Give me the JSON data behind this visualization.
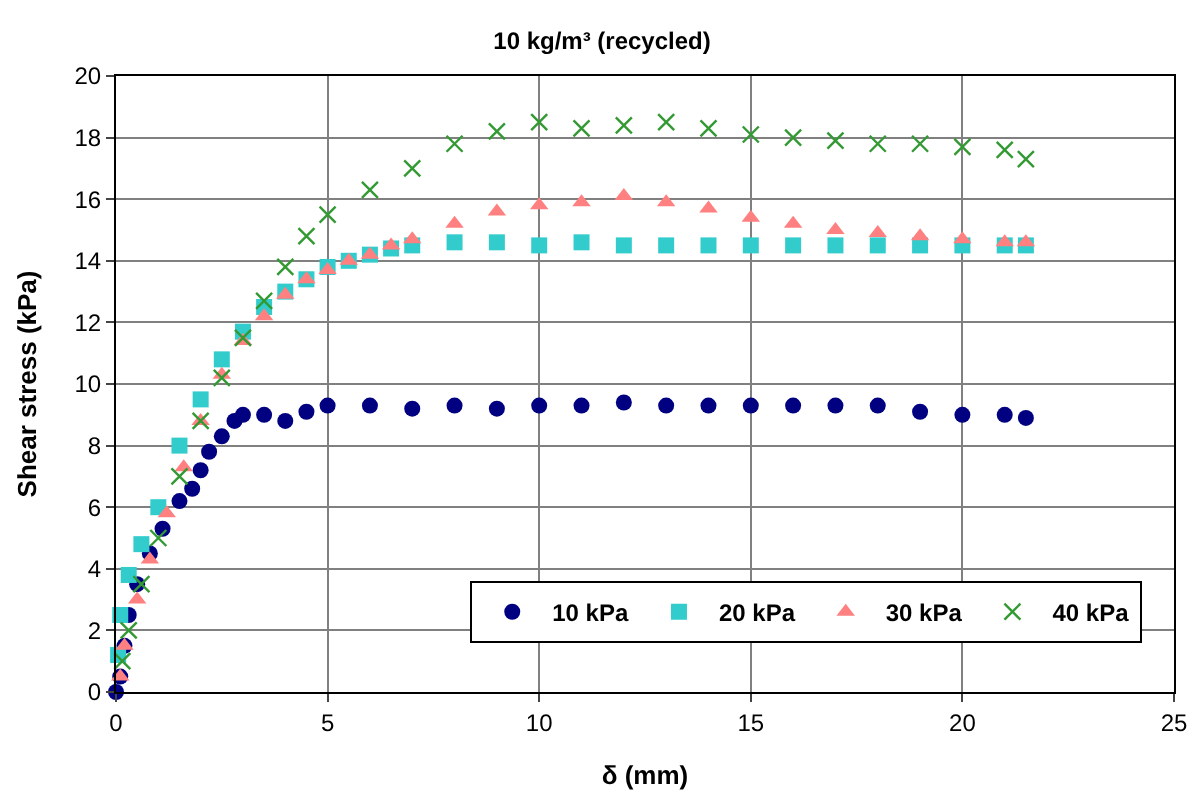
{
  "chart_data": {
    "type": "scatter",
    "title": "10 kg/m³ (recycled)",
    "xlabel": "δ (mm)",
    "ylabel": "Shear stress (kPa)",
    "xlim": [
      0,
      25
    ],
    "xticks": [
      0,
      5,
      10,
      15,
      20,
      25
    ],
    "ylim": [
      0,
      20
    ],
    "yticks": [
      0,
      2,
      4,
      6,
      8,
      10,
      12,
      14,
      16,
      18,
      20
    ],
    "grid": true,
    "legend": "bottom right",
    "series": [
      {
        "name": "10 kPa",
        "color": "#000080",
        "marker": "circle",
        "x": [
          0,
          0.1,
          0.2,
          0.3,
          0.5,
          0.8,
          1.1,
          1.5,
          1.8,
          2.0,
          2.2,
          2.5,
          2.8,
          3.0,
          3.5,
          4.0,
          4.5,
          5.0,
          6,
          7,
          8,
          9,
          10,
          11,
          12,
          13,
          14,
          15,
          16,
          17,
          18,
          19,
          20,
          21,
          21.5
        ],
        "values": [
          0,
          0.5,
          1.5,
          2.5,
          3.5,
          4.5,
          5.3,
          6.2,
          6.6,
          7.2,
          7.8,
          8.3,
          8.8,
          9.0,
          9.0,
          8.8,
          9.1,
          9.3,
          9.3,
          9.2,
          9.3,
          9.2,
          9.3,
          9.3,
          9.4,
          9.3,
          9.3,
          9.3,
          9.3,
          9.3,
          9.3,
          9.1,
          9.0,
          9.0,
          8.9
        ]
      },
      {
        "name": "20 kPa",
        "color": "#33cccc",
        "marker": "square",
        "x": [
          0.05,
          0.1,
          0.3,
          0.6,
          1.0,
          1.5,
          2.0,
          2.5,
          3,
          3.5,
          4,
          4.5,
          5,
          5.5,
          6,
          6.5,
          7,
          8,
          9,
          10,
          11,
          12,
          13,
          14,
          15,
          16,
          17,
          18,
          19,
          20,
          21,
          21.5
        ],
        "values": [
          1.2,
          2.5,
          3.8,
          4.8,
          6.0,
          8.0,
          9.5,
          10.8,
          11.7,
          12.5,
          13.0,
          13.4,
          13.8,
          14.0,
          14.2,
          14.4,
          14.5,
          14.6,
          14.6,
          14.5,
          14.6,
          14.5,
          14.5,
          14.5,
          14.5,
          14.5,
          14.5,
          14.5,
          14.5,
          14.5,
          14.5,
          14.5
        ]
      },
      {
        "name": "30 kPa",
        "color": "#ff8080",
        "marker": "triangle",
        "x": [
          0.1,
          0.2,
          0.5,
          0.8,
          1.2,
          1.6,
          2.0,
          2.5,
          3,
          3.5,
          4,
          4.5,
          5,
          5.5,
          6,
          6.5,
          7,
          8,
          9,
          10,
          11,
          12,
          13,
          14,
          15,
          16,
          17,
          18,
          19,
          20,
          21,
          21.5
        ],
        "values": [
          0.5,
          1.5,
          3.0,
          4.3,
          5.8,
          7.3,
          8.8,
          10.3,
          11.4,
          12.2,
          12.9,
          13.4,
          13.7,
          14.0,
          14.2,
          14.5,
          14.7,
          15.2,
          15.6,
          15.8,
          15.9,
          16.1,
          15.9,
          15.7,
          15.4,
          15.2,
          15.0,
          14.9,
          14.8,
          14.7,
          14.6,
          14.6
        ]
      },
      {
        "name": "40 kPa",
        "color": "#339933",
        "marker": "cross",
        "x": [
          0.15,
          0.3,
          0.6,
          1,
          1.5,
          2,
          2.5,
          3,
          3.5,
          4,
          4.5,
          5,
          6,
          7,
          8,
          9,
          10,
          11,
          12,
          13,
          14,
          15,
          16,
          17,
          18,
          19,
          20,
          21,
          21.5
        ],
        "values": [
          1.0,
          2.0,
          3.5,
          5.0,
          7.0,
          8.8,
          10.2,
          11.5,
          12.7,
          13.8,
          14.8,
          15.5,
          16.3,
          17.0,
          17.8,
          18.2,
          18.5,
          18.3,
          18.4,
          18.5,
          18.3,
          18.1,
          18.0,
          17.9,
          17.8,
          17.8,
          17.7,
          17.6,
          17.3
        ]
      }
    ]
  }
}
